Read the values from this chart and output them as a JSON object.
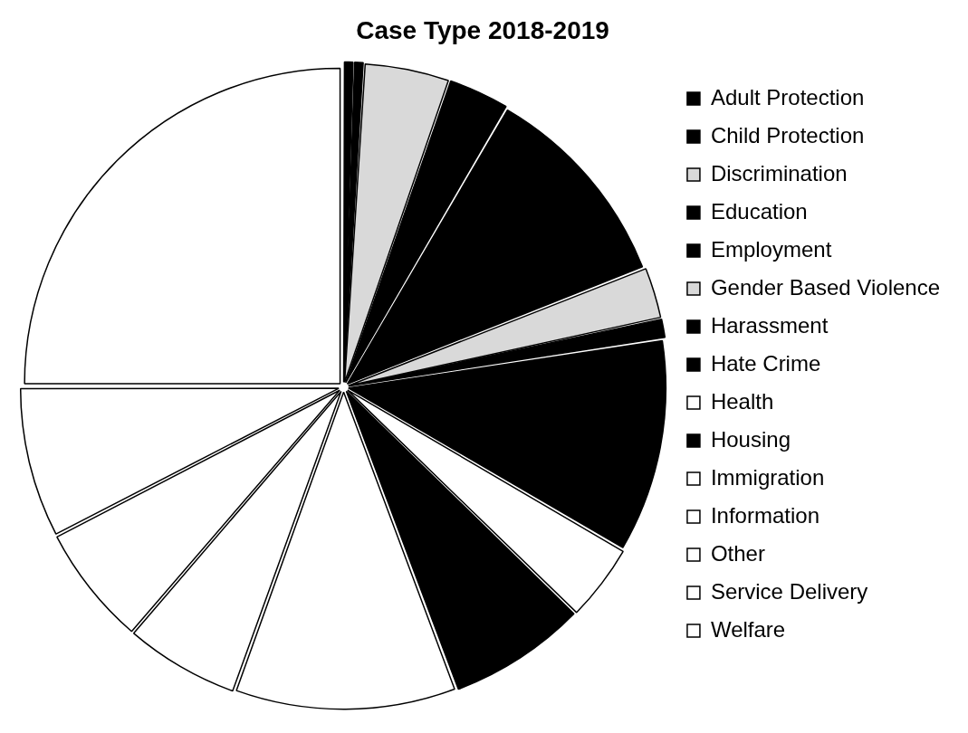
{
  "chart_data": {
    "type": "pie",
    "title": "Case Type 2018-2019",
    "categories": [
      "Adult Protection",
      "Child Protection",
      "Discrimination",
      "Education",
      "Employment",
      "Gender Based Violence",
      "Harassment",
      "Hate Crime",
      "Health",
      "Housing",
      "Immigration",
      "Information",
      "Other",
      "Service Delivery",
      "Welfare"
    ],
    "values": [
      0.5,
      0.5,
      4.3,
      3.1,
      10.6,
      2.6,
      1,
      10.8,
      3.9,
      7,
      11.2,
      5.8,
      6.1,
      7.6,
      25
    ],
    "colors": [
      "#000000",
      "#000000",
      "#d9d9d9",
      "#000000",
      "#000000",
      "#d9d9d9",
      "#000000",
      "#000000",
      "#ffffff",
      "#000000",
      "#ffffff",
      "#ffffff",
      "#ffffff",
      "#ffffff",
      "#ffffff"
    ],
    "legend": "right"
  }
}
